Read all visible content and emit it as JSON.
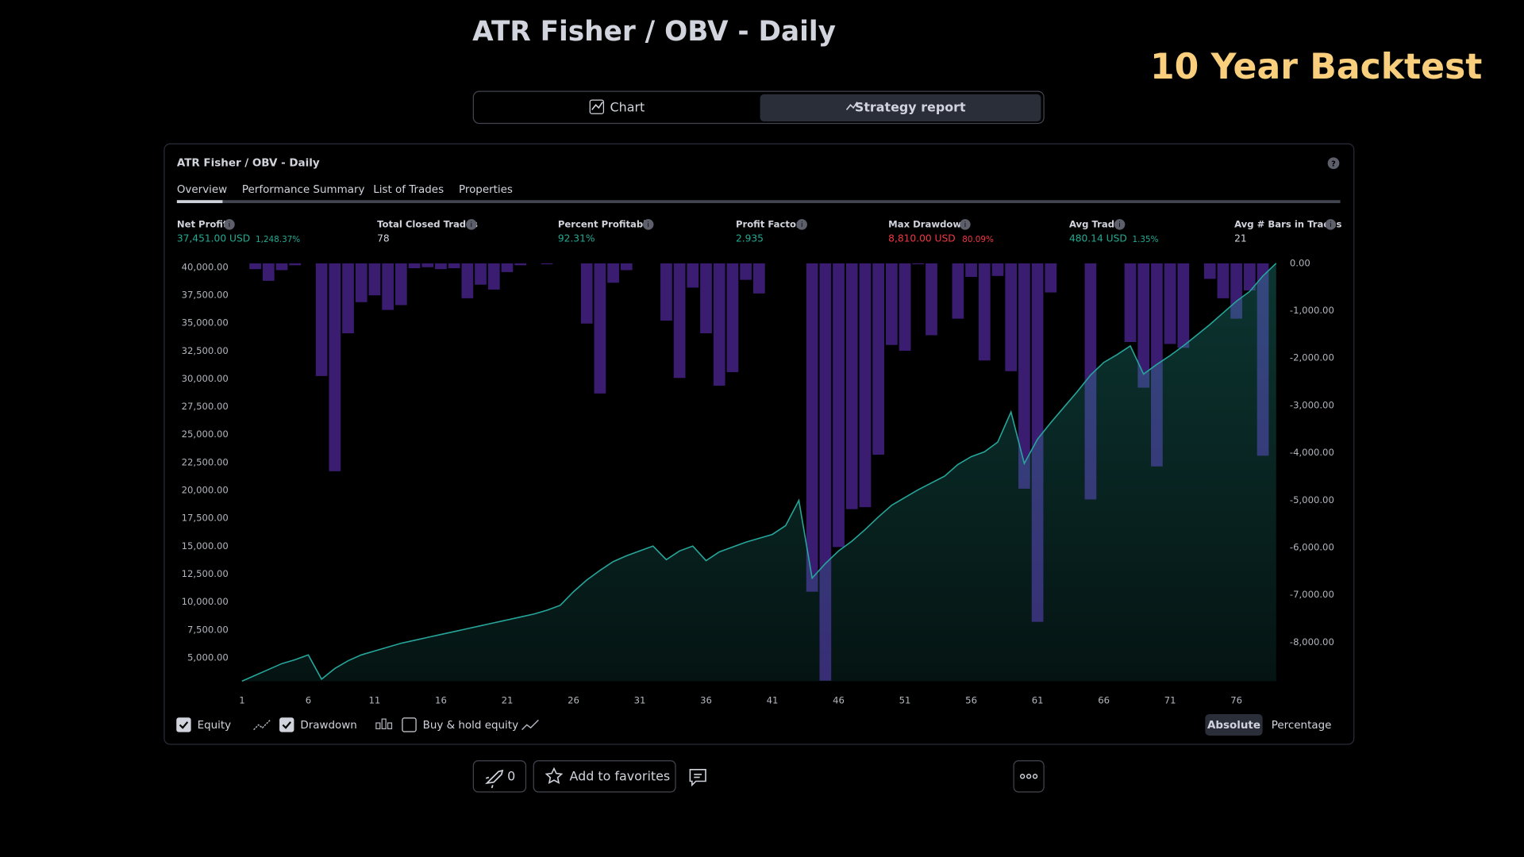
{
  "header": {
    "title": "ATR Fisher / OBV - Daily",
    "overlay": "10 Year Backtest"
  },
  "tabs": [
    "Chart",
    "Strategy report"
  ],
  "active_tab": 1,
  "panel": {
    "title": "ATR Fisher / OBV - Daily",
    "subtabs": [
      "Overview",
      "Performance Summary",
      "List of Trades",
      "Properties"
    ],
    "active_subtab": 0
  },
  "stats": [
    {
      "label": "Net Profit",
      "value": "37,451.00 USD",
      "extra": "1,248.37%",
      "tone": "positive"
    },
    {
      "label": "Total Closed Trades",
      "value": "78",
      "tone": "neutral"
    },
    {
      "label": "Percent Profitable",
      "value": "92.31%",
      "tone": "positive"
    },
    {
      "label": "Profit Factor",
      "value": "2.935",
      "tone": "positive"
    },
    {
      "label": "Max Drawdown",
      "value": "8,810.00 USD",
      "extra": "80.09%",
      "tone": "negative"
    },
    {
      "label": "Avg Trade",
      "value": "480.14 USD",
      "extra": "1.35%",
      "tone": "positive"
    },
    {
      "label": "Avg # Bars in Trades",
      "value": "21",
      "tone": "neutral"
    }
  ],
  "chart_data": {
    "type": "combo",
    "x": [
      1,
      2,
      3,
      4,
      5,
      6,
      7,
      8,
      9,
      10,
      11,
      12,
      13,
      14,
      15,
      16,
      17,
      18,
      19,
      20,
      21,
      22,
      23,
      24,
      25,
      26,
      27,
      28,
      29,
      30,
      31,
      32,
      33,
      34,
      35,
      36,
      37,
      38,
      39,
      40,
      41,
      42,
      43,
      44,
      45,
      46,
      47,
      48,
      49,
      50,
      51,
      52,
      53,
      54,
      55,
      56,
      57,
      58,
      59,
      60,
      61,
      62,
      63,
      64,
      65,
      66,
      67,
      68,
      69,
      70,
      71,
      72,
      73,
      74,
      75,
      76,
      77,
      78,
      79
    ],
    "xlim": [
      1,
      79
    ],
    "xticks": [
      1,
      6,
      11,
      16,
      21,
      26,
      31,
      36,
      41,
      46,
      51,
      56,
      61,
      66,
      71,
      76
    ],
    "ylim": [
      2910,
      40354
    ],
    "yticks": [
      {
        "value": 5000,
        "label": "5,000.00"
      },
      {
        "value": 7500,
        "label": "7,500.00"
      },
      {
        "value": 10000,
        "label": "10,000.00"
      },
      {
        "value": 12500,
        "label": "12,500.00"
      },
      {
        "value": 15000,
        "label": "15,000.00"
      },
      {
        "value": 17500,
        "label": "17,500.00"
      },
      {
        "value": 20000,
        "label": "20,000.00"
      },
      {
        "value": 22500,
        "label": "22,500.00"
      },
      {
        "value": 25000,
        "label": "25,000.00"
      },
      {
        "value": 27500,
        "label": "27,500.00"
      },
      {
        "value": 30000,
        "label": "30,000.00"
      },
      {
        "value": 32500,
        "label": "32,500.00"
      },
      {
        "value": 35000,
        "label": "35,000.00"
      },
      {
        "value": 37500,
        "label": "37,500.00"
      },
      {
        "value": 40000,
        "label": "40,000.00"
      }
    ],
    "y2lim": [
      -8820,
      0
    ],
    "y2ticks": [
      {
        "value": 0,
        "label": "0.00"
      },
      {
        "value": -1000,
        "label": "-1,000.00"
      },
      {
        "value": -2000,
        "label": "-2,000.00"
      },
      {
        "value": -3000,
        "label": "-3,000.00"
      },
      {
        "value": -4000,
        "label": "-4,000.00"
      },
      {
        "value": -5000,
        "label": "-5,000.00"
      },
      {
        "value": -6000,
        "label": "-6,000.00"
      },
      {
        "value": -7000,
        "label": "-7,000.00"
      },
      {
        "value": -8000,
        "label": "-8,000.00"
      }
    ],
    "series": [
      {
        "name": "Equity",
        "type": "area",
        "color": "#26a69a",
        "values": [
          2910,
          3433,
          3955,
          4478,
          4826,
          5261,
          3084,
          4042,
          4739,
          5261,
          5610,
          5958,
          6306,
          6567,
          6829,
          7090,
          7351,
          7612,
          7874,
          8135,
          8396,
          8657,
          8919,
          9267,
          9702,
          10921,
          11966,
          12837,
          13621,
          14143,
          14579,
          15014,
          13795,
          14579,
          15014,
          13708,
          14492,
          14927,
          15363,
          15711,
          16059,
          16843,
          19107,
          12141,
          13447,
          14579,
          15450,
          16495,
          17627,
          18672,
          19368,
          20065,
          20674,
          21284,
          22329,
          23026,
          23461,
          24332,
          27032,
          22416,
          24593,
          26073,
          27466,
          28860,
          30340,
          31472,
          32169,
          32952,
          30427,
          31298,
          32082,
          32952,
          33910,
          34868,
          35913,
          36958,
          37829,
          39222,
          40355
        ]
      },
      {
        "name": "Drawdown",
        "type": "bar",
        "axis": "y2",
        "color": "#3a1d70",
        "values": [
          0,
          -123,
          -369,
          -144,
          -41,
          0,
          -2379,
          -4389,
          -1477,
          -820,
          -677,
          -984,
          -882,
          -103,
          -82,
          -123,
          -103,
          -738,
          -451,
          -554,
          -185,
          -41,
          0,
          -21,
          0,
          0,
          -1272,
          -2748,
          -410,
          -144,
          0,
          0,
          -1210,
          -2420,
          -513,
          -1477,
          -2584,
          -2297,
          -349,
          -636,
          0,
          0,
          0,
          -6932,
          -8810,
          -5989,
          -5189,
          -5148,
          -4040,
          -1723,
          -1846,
          -21,
          -1518,
          0,
          -1169,
          -287,
          -2051,
          -267,
          -2277,
          -4758,
          -7568,
          -615,
          0,
          0,
          -4984,
          0,
          0,
          -1661,
          -2625,
          -4287,
          -1702,
          -1784,
          0,
          -328,
          -738,
          -1169,
          -574,
          -4061,
          0
        ]
      }
    ]
  },
  "legend": {
    "checked": [
      true,
      true,
      false
    ],
    "extra_label": "Buy & hold equity"
  },
  "modes": [
    "Absolute",
    "Percentage"
  ],
  "active_mode": 0,
  "footer": {
    "boosts": "0",
    "favorites": "Add to favorites"
  }
}
